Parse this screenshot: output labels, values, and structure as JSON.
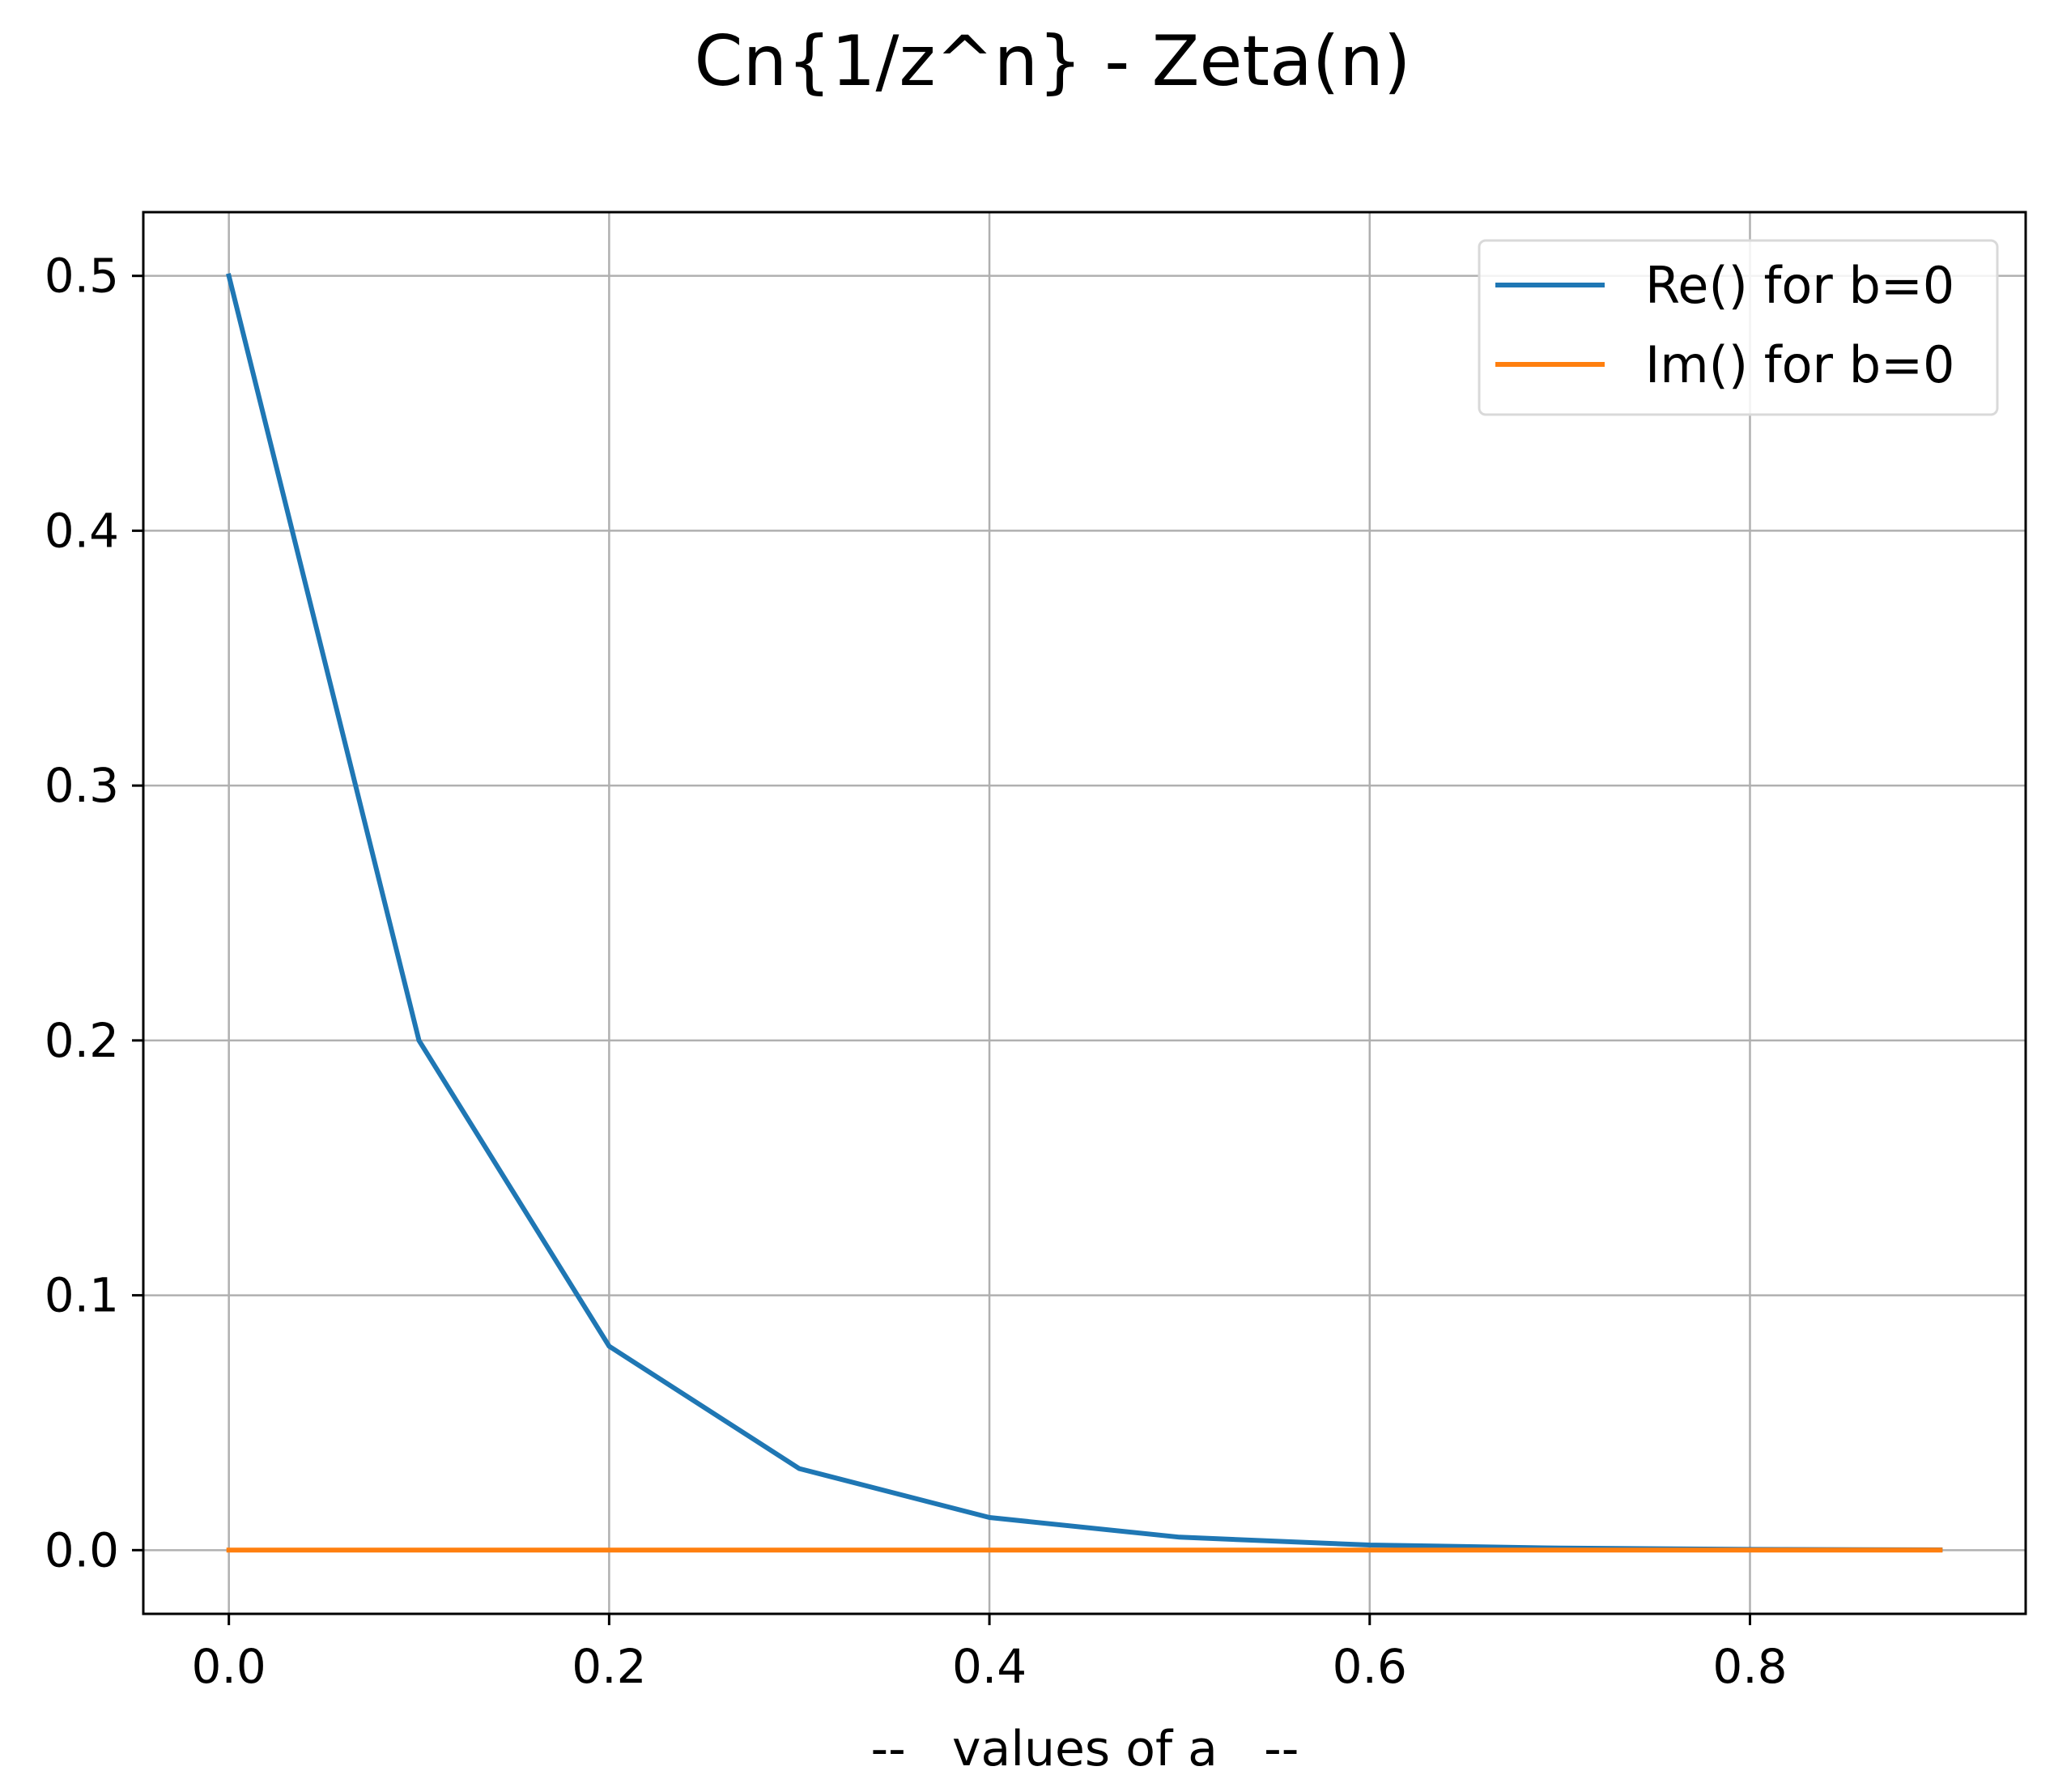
{
  "chart_data": {
    "type": "line",
    "title": "Cn{1/z^n} - Zeta(n)",
    "xlabel": "--   values of a   --",
    "ylabel": "",
    "xlim": [
      -0.045,
      0.945
    ],
    "ylim": [
      -0.025,
      0.525
    ],
    "xticks": [
      0.0,
      0.2,
      0.4,
      0.6,
      0.8
    ],
    "xtick_labels": [
      "0.0",
      "0.2",
      "0.4",
      "0.6",
      "0.8"
    ],
    "yticks": [
      0.0,
      0.1,
      0.2,
      0.3,
      0.4,
      0.5
    ],
    "ytick_labels": [
      "0.0",
      "0.1",
      "0.2",
      "0.3",
      "0.4",
      "0.5"
    ],
    "grid": true,
    "legend_position": "top-right",
    "x": [
      0.0,
      0.1,
      0.2,
      0.3,
      0.4,
      0.5,
      0.6,
      0.7,
      0.8,
      0.9
    ],
    "series": [
      {
        "name": "Re() for b=0",
        "color": "#1f77b4",
        "values": [
          0.5,
          0.2,
          0.08,
          0.032,
          0.0128,
          0.0051,
          0.002,
          0.0008,
          0.0003,
          0.0001
        ]
      },
      {
        "name": "Im() for b=0",
        "color": "#ff7f0e",
        "values": [
          0.0,
          0.0,
          0.0,
          0.0,
          0.0,
          0.0,
          0.0,
          0.0,
          0.0,
          0.0
        ]
      }
    ]
  }
}
